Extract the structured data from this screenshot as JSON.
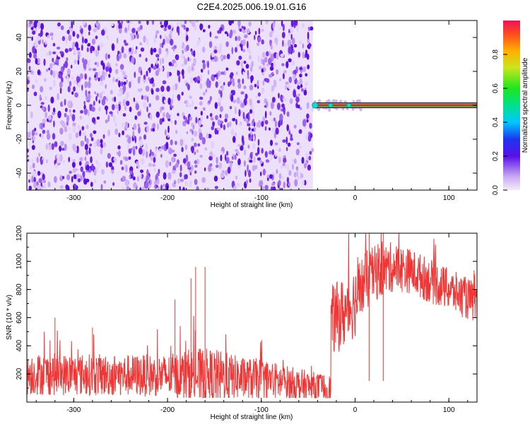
{
  "title": "C2E4.2025.006.19.01.G16",
  "chart_data": [
    {
      "type": "heatmap",
      "xlabel": "Height of straight line (km)",
      "ylabel": "Frequency (Hz)",
      "xlim": [
        -350,
        130
      ],
      "ylim": [
        -50,
        50
      ],
      "xticks": [
        -300,
        -200,
        -100,
        0,
        100
      ],
      "yticks": [
        -40,
        -20,
        0,
        20,
        40
      ],
      "noise_region_x": [
        -350,
        -45
      ],
      "signal": {
        "x_start": -45,
        "x_end": 130,
        "frequency": 0
      },
      "colorbar": {
        "label": "Normalized spectral amplitude",
        "range": [
          0,
          1
        ],
        "ticks": [
          0.0,
          0.2,
          0.4,
          0.6,
          0.8
        ]
      },
      "colors": {
        "noise": "#6e1fe0",
        "signal": "#e6263f"
      }
    },
    {
      "type": "line",
      "xlabel": "Height of straight line (km)",
      "ylabel": "SNR (10 * v/v)",
      "xlim": [
        -350,
        130
      ],
      "ylim": [
        0,
        1200
      ],
      "xticks": [
        -300,
        -200,
        -100,
        0,
        100
      ],
      "yticks": [
        200,
        400,
        600,
        800,
        1000,
        1200
      ],
      "series_color": "#f03535",
      "envelope_x": [
        -350,
        -300,
        -250,
        -200,
        -175,
        -150,
        -120,
        -100,
        -60,
        -40,
        -26,
        -25,
        -10,
        0,
        10,
        20,
        40,
        60,
        80,
        100,
        130
      ],
      "envelope_base": [
        200,
        195,
        190,
        188,
        185,
        180,
        170,
        160,
        120,
        100,
        95,
        580,
        640,
        720,
        850,
        910,
        960,
        930,
        860,
        800,
        700
      ],
      "envelope_spread": [
        150,
        150,
        150,
        150,
        200,
        200,
        150,
        150,
        120,
        110,
        100,
        250,
        260,
        260,
        220,
        200,
        180,
        160,
        160,
        150,
        150
      ],
      "peaks": [
        {
          "x": -175,
          "y": 880
        },
        {
          "x": -170,
          "y": 960
        },
        {
          "x": -160,
          "y": 960
        },
        {
          "x": -192,
          "y": 730
        },
        {
          "x": -320,
          "y": 600
        },
        {
          "x": -280,
          "y": 530
        },
        {
          "x": 15,
          "y": 1200
        },
        {
          "x": 30,
          "y": 1200
        }
      ]
    }
  ]
}
